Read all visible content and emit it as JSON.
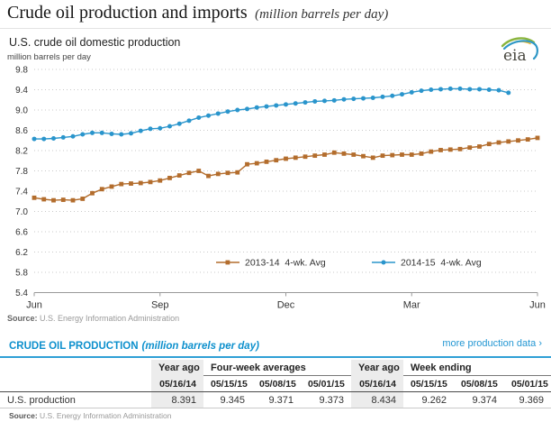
{
  "header": {
    "title": "Crude oil production and imports",
    "title_note": "(million barrels per day)"
  },
  "chart": {
    "heading": "U.S. crude oil domestic production",
    "units_label": "million barrels per day",
    "source_prefix": "Source:",
    "source_text": "U.S. Energy Information Administration",
    "logo_text": "eia"
  },
  "chart_data": {
    "type": "line",
    "title": "U.S. crude oil domestic production",
    "ylabel": "million barrels per day",
    "ylim": [
      5.4,
      9.8
    ],
    "yticks": [
      9.8,
      9.4,
      9.0,
      8.6,
      8.2,
      7.8,
      7.4,
      7.0,
      6.6,
      6.2,
      5.8,
      5.4
    ],
    "xtick_labels": [
      "Jun",
      "Sep",
      "Dec",
      "Mar",
      "Jun"
    ],
    "xtick_weeks": [
      0,
      13,
      26,
      39,
      52
    ],
    "weeks_total": 52,
    "grid": "dotted-horizontal",
    "legend_position": "inside-bottom",
    "series": [
      {
        "name": "2013-14  4-wk. Avg",
        "color": "#b36d2d",
        "marker": "square",
        "start_week": 0,
        "values": [
          7.27,
          7.24,
          7.22,
          7.23,
          7.22,
          7.25,
          7.36,
          7.44,
          7.49,
          7.54,
          7.55,
          7.56,
          7.58,
          7.61,
          7.66,
          7.71,
          7.76,
          7.8,
          7.7,
          7.74,
          7.76,
          7.77,
          7.93,
          7.95,
          7.98,
          8.01,
          8.04,
          8.06,
          8.08,
          8.1,
          8.12,
          8.16,
          8.14,
          8.12,
          8.09,
          8.06,
          8.1,
          8.11,
          8.12,
          8.12,
          8.14,
          8.18,
          8.21,
          8.22,
          8.23,
          8.26,
          8.28,
          8.33,
          8.36,
          8.38,
          8.4,
          8.42,
          8.45
        ]
      },
      {
        "name": "2014-15  4-wk. Avg",
        "color": "#2a95cc",
        "marker": "circle",
        "start_week": 0,
        "values": [
          8.43,
          8.43,
          8.44,
          8.46,
          8.48,
          8.52,
          8.55,
          8.55,
          8.53,
          8.52,
          8.54,
          8.59,
          8.63,
          8.64,
          8.68,
          8.73,
          8.79,
          8.85,
          8.89,
          8.93,
          8.97,
          9.0,
          9.02,
          9.05,
          9.07,
          9.09,
          9.11,
          9.13,
          9.15,
          9.17,
          9.18,
          9.19,
          9.21,
          9.22,
          9.23,
          9.24,
          9.26,
          9.28,
          9.31,
          9.35,
          9.38,
          9.4,
          9.41,
          9.42,
          9.42,
          9.41,
          9.41,
          9.4,
          9.39,
          9.34
        ]
      }
    ]
  },
  "table": {
    "title": "CRUDE OIL PRODUCTION",
    "title_note": "(million barrels per day)",
    "link": "more production data ›",
    "group_headers": {
      "year_ago_1": "Year ago",
      "four_week": "Four-week averages",
      "year_ago_2": "Year ago",
      "week_ending": "Week ending"
    },
    "dates": [
      "05/16/14",
      "05/15/15",
      "05/08/15",
      "05/01/15",
      "05/16/14",
      "05/15/15",
      "05/08/15",
      "05/01/15"
    ],
    "row_label": "U.S. production",
    "values": [
      "8.391",
      "9.345",
      "9.371",
      "9.373",
      "8.434",
      "9.262",
      "9.374",
      "9.369"
    ],
    "source_prefix": "Source:",
    "source_text": "U.S. Energy Information Administration"
  },
  "colors": {
    "series_2013_14": "#b36d2d",
    "series_2014_15": "#2a95cc",
    "table_accent_blue": "#0d90cd",
    "grid": "#c9c9c9",
    "axis": "#999999",
    "year_ago_shade": "#ececec"
  }
}
